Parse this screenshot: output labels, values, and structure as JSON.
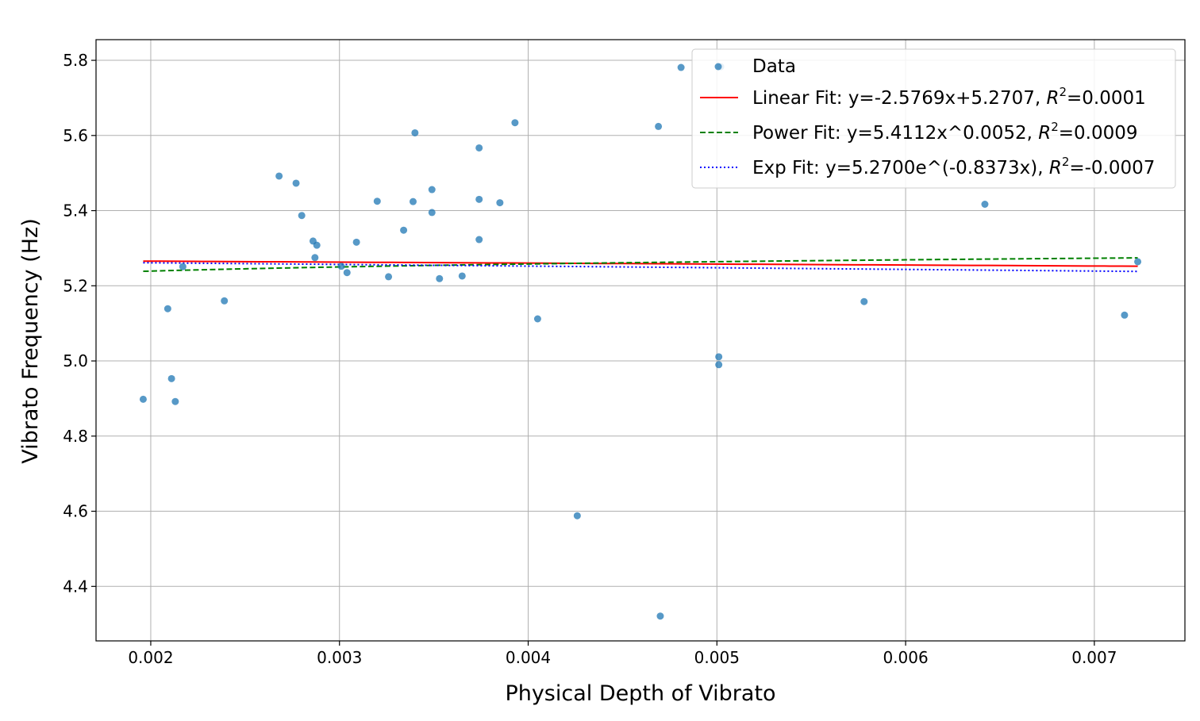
{
  "chart_data": {
    "type": "scatter",
    "xlabel": "Physical Depth of Vibrato",
    "ylabel": "Vibrato Frequency (Hz)",
    "xlim": [
      0.00171,
      0.00748
    ],
    "ylim": [
      4.255,
      5.855
    ],
    "x_ticks": [
      0.002,
      0.003,
      0.004,
      0.005,
      0.006,
      0.007
    ],
    "x_tick_labels": [
      "0.002",
      "0.003",
      "0.004",
      "0.005",
      "0.006",
      "0.007"
    ],
    "y_ticks": [
      4.4,
      4.6,
      4.8,
      5.0,
      5.2,
      5.4,
      5.6,
      5.8
    ],
    "y_tick_labels": [
      "4.4",
      "4.6",
      "4.8",
      "5.0",
      "5.2",
      "5.4",
      "5.6",
      "5.8"
    ],
    "grid": true,
    "legend_position": "top-right",
    "colors": {
      "points": "#1f77b4",
      "linear": "#ff0000",
      "power": "#008000",
      "exp": "#0000ff",
      "grid": "#b0b0b0"
    },
    "points": [
      [
        0.00196,
        4.898
      ],
      [
        0.00209,
        5.139
      ],
      [
        0.00211,
        4.953
      ],
      [
        0.00213,
        4.892
      ],
      [
        0.00217,
        5.251
      ],
      [
        0.00239,
        5.16
      ],
      [
        0.00268,
        5.492
      ],
      [
        0.00277,
        5.473
      ],
      [
        0.0028,
        5.387
      ],
      [
        0.00286,
        5.319
      ],
      [
        0.00287,
        5.275
      ],
      [
        0.00288,
        5.308
      ],
      [
        0.00301,
        5.252
      ],
      [
        0.00304,
        5.235
      ],
      [
        0.00309,
        5.316
      ],
      [
        0.0032,
        5.425
      ],
      [
        0.00326,
        5.224
      ],
      [
        0.00334,
        5.348
      ],
      [
        0.00339,
        5.424
      ],
      [
        0.0034,
        5.607
      ],
      [
        0.00349,
        5.456
      ],
      [
        0.00349,
        5.395
      ],
      [
        0.00353,
        5.219
      ],
      [
        0.00365,
        5.226
      ],
      [
        0.00374,
        5.43
      ],
      [
        0.00374,
        5.323
      ],
      [
        0.00374,
        5.567
      ],
      [
        0.00385,
        5.421
      ],
      [
        0.00393,
        5.634
      ],
      [
        0.00405,
        5.112
      ],
      [
        0.00426,
        4.588
      ],
      [
        0.00469,
        5.624
      ],
      [
        0.0047,
        4.321
      ],
      [
        0.00481,
        5.781
      ],
      [
        0.00501,
        4.99
      ],
      [
        0.00501,
        5.011
      ],
      [
        0.00502,
        5.783
      ],
      [
        0.00578,
        5.158
      ],
      [
        0.00642,
        5.417
      ],
      [
        0.00716,
        5.122
      ],
      [
        0.00723,
        5.264
      ]
    ],
    "fit_x_range": [
      0.00196,
      0.00723
    ],
    "series": [
      {
        "name": "Data"
      },
      {
        "name": "Linear Fit: y=-2.5769x+5.2707, ",
        "r2_label": "R",
        "r2_value": "=0.0001",
        "a": -2.5769,
        "b": 5.2707
      },
      {
        "name": "Power Fit: y=5.4112x^0.0052, ",
        "r2_label": "R",
        "r2_value": "=0.0009",
        "a": 5.4112,
        "b": 0.0052
      },
      {
        "name": "Exp Fit: y=5.2700e^(-0.8373x), ",
        "r2_label": "R",
        "r2_value": "=-0.0007",
        "a": 5.27,
        "b": -0.8373
      }
    ]
  }
}
